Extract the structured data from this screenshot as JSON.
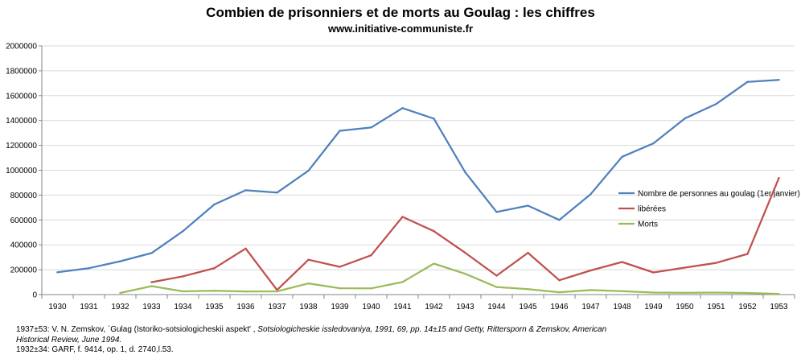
{
  "chart_data": {
    "type": "line",
    "title": "Combien de prisonniers et de morts au Goulag : les chiffres",
    "subtitle": "www.initiative-communiste.fr",
    "categories": [
      "1930",
      "1931",
      "1932",
      "1933",
      "1934",
      "1935",
      "1936",
      "1937",
      "1938",
      "1939",
      "1940",
      "1941",
      "1942",
      "1943",
      "1944",
      "1945",
      "1946",
      "1947",
      "1948",
      "1949",
      "1950",
      "1951",
      "1952",
      "1953"
    ],
    "ylim": [
      0,
      2000000
    ],
    "yticks": [
      0,
      200000,
      400000,
      600000,
      800000,
      1000000,
      1200000,
      1400000,
      1600000,
      1800000,
      2000000
    ],
    "grid": true,
    "legend_position": "right",
    "series": [
      {
        "name": "Nombre de personnes au goulag (1er janvier)",
        "color": "#4f81bd",
        "values": [
          179000,
          212000,
          268000,
          334000,
          510000,
          725000,
          839000,
          820000,
          996000,
          1317000,
          1344000,
          1500000,
          1415000,
          983000,
          664000,
          715000,
          600000,
          808000,
          1108000,
          1216000,
          1416000,
          1533000,
          1711000,
          1727000
        ]
      },
      {
        "name": "libérées",
        "color": "#c0504d",
        "values": [
          null,
          null,
          null,
          100000,
          147000,
          212000,
          370000,
          37000,
          280000,
          223000,
          316000,
          625000,
          510000,
          336000,
          152000,
          336000,
          115000,
          194000,
          262000,
          178000,
          217000,
          255000,
          327000,
          937000
        ]
      },
      {
        "name": "Morts",
        "color": "#9bbb59",
        "values": [
          null,
          null,
          13000,
          68000,
          26000,
          31000,
          25000,
          26000,
          90000,
          51000,
          50000,
          101000,
          249000,
          167000,
          61000,
          44000,
          19000,
          36000,
          28000,
          16000,
          15000,
          16000,
          13000,
          6000
        ]
      }
    ]
  },
  "footnote": {
    "line1_prefix": "1937±53: V. N. Zemskov, `Gulag (Istoriko-sotsiologicheskii aspekt' ,",
    "line1_italic": " Sotsiologicheskie issledovaniya, 1991, 69, pp. 14±15 and Getty, Rittersporn & Zemskov, American",
    "line2": "Historical Review, June 1994.",
    "line3": "1932±34: GARF, f. 9414, op. 1, d. 2740,l.53."
  }
}
